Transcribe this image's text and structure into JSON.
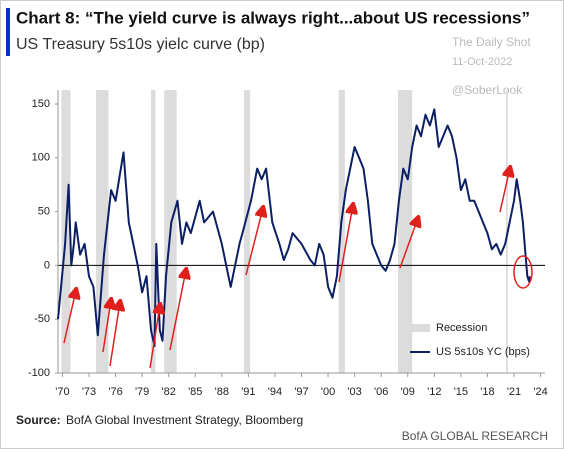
{
  "chart_data": {
    "type": "line",
    "title": "Chart 8: “The yield curve is always right...about US recessions”",
    "subtitle": "US Treasury 5s10s yielc curve (bp)",
    "watermark": [
      "The Daily Shot",
      "11-Oct-2022",
      "@SoberLook"
    ],
    "source_label": "Source:",
    "source": "BofA Global Investment Strategy, Bloomberg",
    "footer": "BofA GLOBAL RESEARCH",
    "x": [
      1969.5,
      1970.3,
      1970.7,
      1971,
      1971.3,
      1971.5,
      1972,
      1972.5,
      1973,
      1973.5,
      1974,
      1974.7,
      1975.5,
      1976,
      1976.9,
      1977.5,
      1978,
      1978.5,
      1979,
      1979.5,
      1980,
      1980.4,
      1980.6,
      1981,
      1981.3,
      1981.7,
      1982.3,
      1983,
      1983.5,
      1984,
      1984.5,
      1985.5,
      1986,
      1987,
      1988,
      1988.5,
      1989,
      1989.5,
      1990,
      1990.5,
      1991.3,
      1992,
      1992.5,
      1993,
      1993.7,
      1994.5,
      1995,
      1995.5,
      1996,
      1997,
      1998,
      1998.5,
      1999,
      1999.5,
      2000,
      2000.5,
      2001,
      2001.5,
      2002,
      2003,
      2003.5,
      2004,
      2004.5,
      2005,
      2006,
      2006.5,
      2007,
      2007.5,
      2008,
      2008.5,
      2009,
      2009.5,
      2010,
      2010.5,
      2011,
      2011.5,
      2012,
      2012.5,
      2013.5,
      2014,
      2014.5,
      2015,
      2015.5,
      2016,
      2016.5,
      2017.5,
      2018,
      2018.5,
      2019,
      2019.5,
      2020,
      2020.5,
      2021,
      2021.3,
      2021.7,
      2022,
      2022.3,
      2022.5,
      2022.7,
      2022.78
    ],
    "series": [
      {
        "name": "US 5s10s YC (bps)",
        "color": "#0b1f65",
        "values": [
          -50,
          20,
          75,
          0,
          20,
          40,
          10,
          20,
          -10,
          -20,
          -65,
          10,
          70,
          60,
          105,
          40,
          20,
          0,
          -25,
          -10,
          -60,
          -75,
          20,
          -60,
          -70,
          -10,
          40,
          60,
          20,
          40,
          30,
          60,
          40,
          50,
          20,
          0,
          -20,
          0,
          20,
          35,
          60,
          90,
          80,
          90,
          40,
          20,
          5,
          15,
          30,
          20,
          5,
          0,
          20,
          10,
          -20,
          -30,
          -10,
          40,
          70,
          110,
          100,
          90,
          60,
          20,
          0,
          -5,
          5,
          20,
          60,
          90,
          80,
          110,
          130,
          120,
          140,
          130,
          145,
          110,
          130,
          120,
          100,
          70,
          80,
          60,
          60,
          40,
          30,
          15,
          20,
          10,
          20,
          40,
          60,
          80,
          60,
          40,
          10,
          -10,
          -15,
          -10
        ]
      }
    ],
    "recession_label": "Recession",
    "recession_color": "#dcdcdc",
    "recessions": [
      [
        1969.9,
        1970.9
      ],
      [
        1973.8,
        1975.2
      ],
      [
        1980.0,
        1980.5
      ],
      [
        1981.5,
        1982.9
      ],
      [
        1990.5,
        1991.2
      ],
      [
        2001.2,
        2001.9
      ],
      [
        2007.9,
        2009.5
      ],
      [
        2020.1,
        2020.3
      ]
    ],
    "xlim": [
      1969.5,
      2024.5
    ],
    "ylim": [
      -100,
      163
    ],
    "xticks": [
      {
        "value": 1970,
        "label": "'70"
      },
      {
        "value": 1973,
        "label": "'73"
      },
      {
        "value": 1976,
        "label": "'76"
      },
      {
        "value": 1979,
        "label": "'79"
      },
      {
        "value": 1982,
        "label": "'82"
      },
      {
        "value": 1985,
        "label": "'85"
      },
      {
        "value": 1988,
        "label": "'88"
      },
      {
        "value": 1991,
        "label": "'91"
      },
      {
        "value": 1994,
        "label": "'94"
      },
      {
        "value": 1997,
        "label": "'97"
      },
      {
        "value": 2000,
        "label": "'00"
      },
      {
        "value": 2003,
        "label": "'03"
      },
      {
        "value": 2006,
        "label": "'06"
      },
      {
        "value": 2009,
        "label": "'09"
      },
      {
        "value": 2012,
        "label": "'12"
      },
      {
        "value": 2015,
        "label": "'15"
      },
      {
        "value": 2018,
        "label": "'18"
      },
      {
        "value": 2021,
        "label": "'21"
      },
      {
        "value": 2024,
        "label": "'24"
      }
    ],
    "yticks": [
      -100,
      -50,
      0,
      50,
      100,
      150
    ],
    "grid": false,
    "legend": "lower right"
  }
}
